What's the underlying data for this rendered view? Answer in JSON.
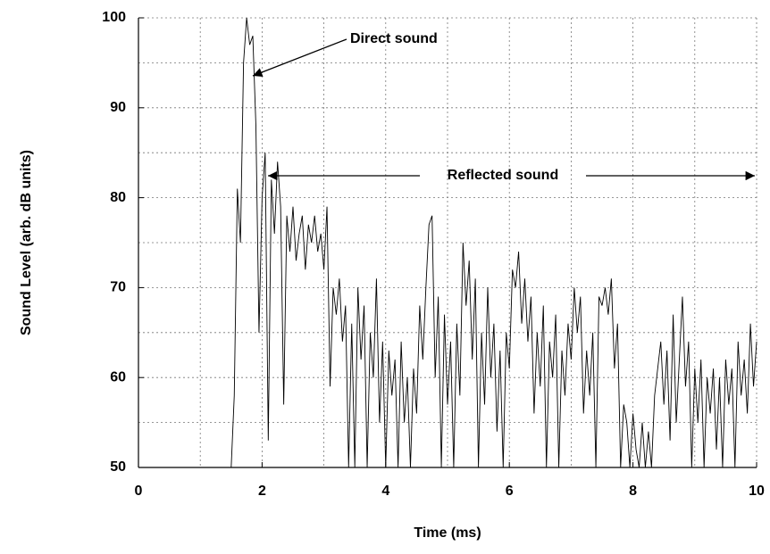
{
  "chart_data": {
    "type": "line",
    "xlabel": "Time (ms)",
    "ylabel": "Sound Level (arb. dB units)",
    "annotations": [
      "Direct sound",
      "Reflected sound"
    ],
    "xlim": [
      0,
      10
    ],
    "xticks": [
      0,
      2,
      4,
      6,
      8,
      10
    ],
    "xminor": [
      1,
      3,
      5,
      7,
      9
    ],
    "ylim": [
      50,
      100
    ],
    "yticks": [
      50,
      60,
      70,
      80,
      90,
      100
    ],
    "yminor": [
      55,
      65,
      75,
      85,
      95
    ],
    "grid": true,
    "x": [
      1.5,
      1.55,
      1.6,
      1.65,
      1.7,
      1.75,
      1.8,
      1.85,
      1.9,
      1.95,
      2.0,
      2.05,
      2.1,
      2.15,
      2.2,
      2.25,
      2.3,
      2.35,
      2.4,
      2.45,
      2.5,
      2.55,
      2.6,
      2.65,
      2.7,
      2.75,
      2.8,
      2.85,
      2.9,
      2.95,
      3.0,
      3.05,
      3.1,
      3.15,
      3.2,
      3.25,
      3.3,
      3.35,
      3.4,
      3.45,
      3.5,
      3.55,
      3.6,
      3.65,
      3.7,
      3.75,
      3.8,
      3.85,
      3.9,
      3.95,
      4.0,
      4.05,
      4.1,
      4.15,
      4.2,
      4.25,
      4.3,
      4.35,
      4.4,
      4.45,
      4.5,
      4.55,
      4.6,
      4.65,
      4.7,
      4.75,
      4.8,
      4.85,
      4.9,
      4.95,
      5.0,
      5.05,
      5.1,
      5.15,
      5.2,
      5.25,
      5.3,
      5.35,
      5.4,
      5.45,
      5.5,
      5.55,
      5.6,
      5.65,
      5.7,
      5.75,
      5.8,
      5.85,
      5.9,
      5.95,
      6.0,
      6.05,
      6.1,
      6.15,
      6.2,
      6.25,
      6.3,
      6.35,
      6.4,
      6.45,
      6.5,
      6.55,
      6.6,
      6.65,
      6.7,
      6.75,
      6.8,
      6.85,
      6.9,
      6.95,
      7.0,
      7.05,
      7.1,
      7.15,
      7.2,
      7.25,
      7.3,
      7.35,
      7.4,
      7.45,
      7.5,
      7.55,
      7.6,
      7.65,
      7.7,
      7.75,
      7.8,
      7.85,
      7.9,
      7.95,
      8.0,
      8.05,
      8.1,
      8.15,
      8.2,
      8.25,
      8.3,
      8.35,
      8.4,
      8.45,
      8.5,
      8.55,
      8.6,
      8.65,
      8.7,
      8.75,
      8.8,
      8.85,
      8.9,
      8.95,
      9.0,
      9.05,
      9.1,
      9.15,
      9.2,
      9.25,
      9.3,
      9.35,
      9.4,
      9.45,
      9.5,
      9.55,
      9.6,
      9.65,
      9.7,
      9.75,
      9.8,
      9.85,
      9.9,
      9.95,
      10.0
    ],
    "series": [
      {
        "color": "#000000",
        "values": [
          50,
          58,
          81,
          75,
          95,
          100,
          97,
          98,
          88,
          65,
          80,
          85,
          53,
          82,
          76,
          84,
          79,
          57,
          78,
          74,
          79,
          73,
          76,
          78,
          72,
          77,
          75,
          78,
          74,
          76,
          72,
          79,
          59,
          70,
          67,
          71,
          64,
          68,
          50,
          66,
          50,
          70,
          62,
          68,
          50,
          65,
          60,
          71,
          55,
          64,
          50,
          63,
          58,
          62,
          50,
          64,
          55,
          60,
          50,
          61,
          56,
          68,
          62,
          70,
          77,
          78,
          60,
          69,
          50,
          67,
          57,
          64,
          50,
          66,
          58,
          75,
          68,
          73,
          62,
          71,
          50,
          65,
          57,
          70,
          60,
          66,
          54,
          63,
          50,
          65,
          61,
          72,
          70,
          74,
          66,
          71,
          64,
          69,
          56,
          65,
          59,
          68,
          50,
          64,
          60,
          67,
          50,
          63,
          58,
          66,
          62,
          70,
          65,
          69,
          56,
          63,
          58,
          65,
          50,
          69,
          68,
          70,
          67,
          71,
          61,
          66,
          50,
          57,
          55,
          50,
          56,
          52,
          50,
          55,
          50,
          54,
          50,
          58,
          61,
          64,
          57,
          63,
          53,
          67,
          55,
          62,
          69,
          59,
          64,
          50,
          61,
          55,
          62,
          50,
          60,
          56,
          61,
          52,
          60,
          50,
          62,
          57,
          61,
          50,
          64,
          58,
          62,
          56,
          66,
          59,
          64
        ]
      }
    ]
  }
}
